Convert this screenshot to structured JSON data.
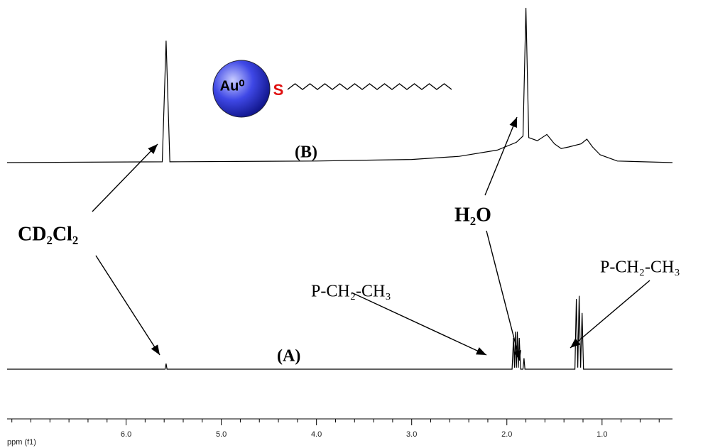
{
  "chart_data": {
    "type": "line",
    "xlim": [
      7.25,
      0.26
    ],
    "ylim": [
      0,
      100
    ],
    "xticks": [
      {
        "value": 6,
        "label": "6.0"
      },
      {
        "value": 5,
        "label": "5.0"
      },
      {
        "value": 4,
        "label": "4.0"
      },
      {
        "value": 3,
        "label": "3.0"
      },
      {
        "value": 2,
        "label": "2.0"
      },
      {
        "value": 1,
        "label": "1.0"
      }
    ],
    "xminorticks": [
      7.2,
      7.0,
      6.8,
      6.6,
      6.4,
      6.2,
      5.8,
      5.6,
      5.4,
      5.2,
      4.8,
      4.6,
      4.4,
      4.2,
      3.8,
      3.6,
      3.4,
      3.2,
      2.8,
      2.6,
      2.4,
      2.2,
      1.8,
      1.6,
      1.4,
      1.2,
      0.8,
      0.6,
      0.4
    ],
    "x_label": "ppm (f1)",
    "series": [
      {
        "name": "(B)",
        "color": "#000000",
        "x": [
          7.25,
          5.62,
          5.58,
          5.54,
          4.0,
          3.0,
          2.5,
          2.1,
          1.9,
          1.83,
          1.8,
          1.77,
          1.68,
          1.58,
          1.5,
          1.43,
          1.35,
          1.22,
          1.16,
          1.1,
          1.02,
          0.84,
          0.26
        ],
        "values": [
          0,
          0.5,
          78,
          0.5,
          1,
          2,
          4,
          8,
          13,
          17,
          99,
          16,
          14,
          18,
          12,
          9,
          10,
          12,
          15,
          10,
          5,
          1,
          0
        ]
      },
      {
        "name": "(A)",
        "color": "#000000",
        "x": [
          7.25,
          5.59,
          5.58,
          5.57,
          1.945,
          1.93,
          1.92,
          1.91,
          1.9,
          1.89,
          1.88,
          1.87,
          1.855,
          1.83,
          1.82,
          1.81,
          1.285,
          1.27,
          1.255,
          1.24,
          1.225,
          1.21,
          1.195,
          0.26
        ],
        "values": [
          0,
          0,
          3.6,
          0,
          0,
          20,
          1,
          24,
          1,
          24,
          1,
          20,
          0,
          0,
          7,
          0,
          0,
          45,
          1,
          47,
          1,
          36,
          0,
          0
        ]
      }
    ],
    "annotations": {
      "solvent": "CD₂Cl₂",
      "water": "H₂O",
      "methylene": "P-CH₂-CH₃",
      "methyl": "P-CH₂-CH₃",
      "gold": "Au⁰",
      "sulfur": "S"
    }
  }
}
